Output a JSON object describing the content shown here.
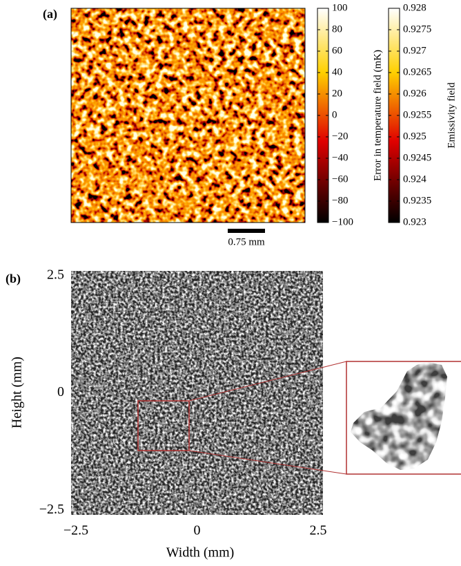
{
  "panel_a": {
    "label": "(a)",
    "scale_bar": "0.75 mm",
    "colorbars": [
      {
        "title": "Error in temperature field (mK)",
        "lim": [
          -100,
          100
        ],
        "ticks": [
          100,
          80,
          60,
          40,
          20,
          0,
          {
            "value": -20,
            "label": "−20"
          },
          {
            "value": -40,
            "label": "−40"
          },
          {
            "value": -60,
            "label": "−60"
          },
          {
            "value": -80,
            "label": "−80"
          },
          {
            "value": -100,
            "label": "−100"
          }
        ]
      },
      {
        "title": "Emissivity field",
        "lim": [
          0.923,
          0.928
        ],
        "ticks": [
          0.928,
          0.9275,
          0.927,
          0.9265,
          0.926,
          0.9255,
          0.925,
          0.9245,
          0.924,
          0.9235,
          0.923
        ]
      }
    ]
  },
  "panel_b": {
    "label": "(b)",
    "xlabel": "Width (mm)",
    "ylabel": "Height (mm)",
    "xlim": [
      -2.6,
      2.6
    ],
    "ylim": [
      -2.6,
      2.6
    ],
    "xticks": [
      {
        "value": -2.5,
        "label": "−2.5"
      },
      0,
      2.5
    ],
    "yticks": [
      2.5,
      0,
      {
        "value": -2.5,
        "label": "−2.5"
      }
    ]
  }
}
